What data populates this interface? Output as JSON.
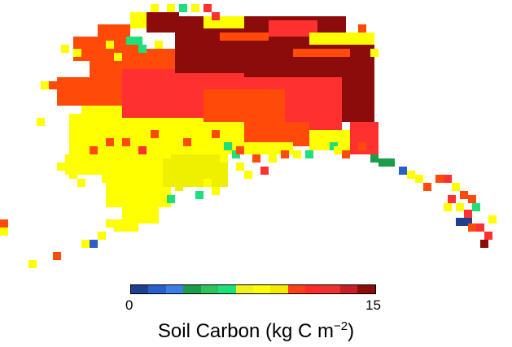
{
  "map": {
    "variable": "Soil Carbon",
    "region": "Alaska"
  },
  "colorbar": {
    "min_label": "0",
    "max_label": "15",
    "min": 0,
    "max": 15,
    "title_main": "Soil Carbon (kg C m",
    "title_exponent": "−2",
    "title_close": ")",
    "colors": [
      "#1f3f8f",
      "#2a5ec8",
      "#3a7ee6",
      "#1c9c4a",
      "#2ec25a",
      "#1ee07a",
      "#f2f21a",
      "#ffff00",
      "#f7e800",
      "#ff3f1a",
      "#ff2a2a",
      "#f03030",
      "#c81e28",
      "#8c0c0c"
    ]
  }
}
